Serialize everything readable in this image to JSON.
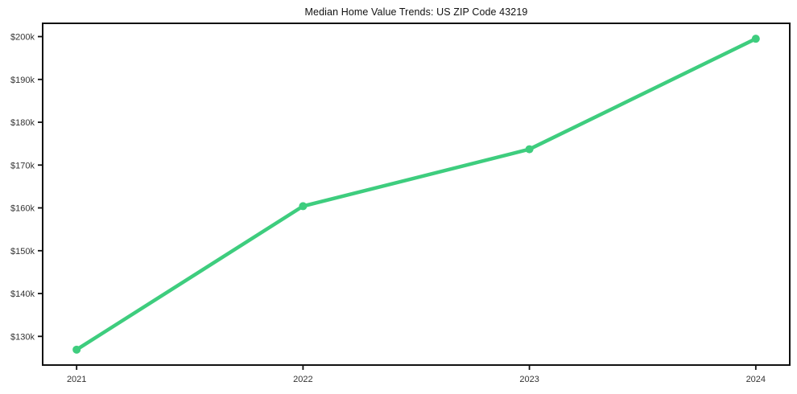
{
  "chart_data": {
    "type": "line",
    "title": "Median Home Value Trends: US ZIP Code 43219",
    "series_name": "Median Home Value",
    "x": [
      2021,
      2022,
      2023,
      2024
    ],
    "values": [
      126900,
      160400,
      173700,
      199500
    ],
    "xtick_labels": [
      "2021",
      "2022",
      "2023",
      "2024"
    ],
    "ytick_values": [
      130000,
      140000,
      150000,
      160000,
      170000,
      180000,
      190000,
      200000
    ],
    "ytick_labels": [
      "$130k",
      "$140k",
      "$150k",
      "$160k",
      "$170k",
      "$180k",
      "$190k",
      "$200k"
    ],
    "xlim": [
      2020.85,
      2024.15
    ],
    "ylim": [
      123300,
      203100
    ],
    "xlabel": "",
    "ylabel": "",
    "grid": false,
    "legend": "none",
    "line_color": "#3ecd7e",
    "marker": "circle",
    "spine_color": "#111111",
    "background_color": "#ffffff"
  }
}
